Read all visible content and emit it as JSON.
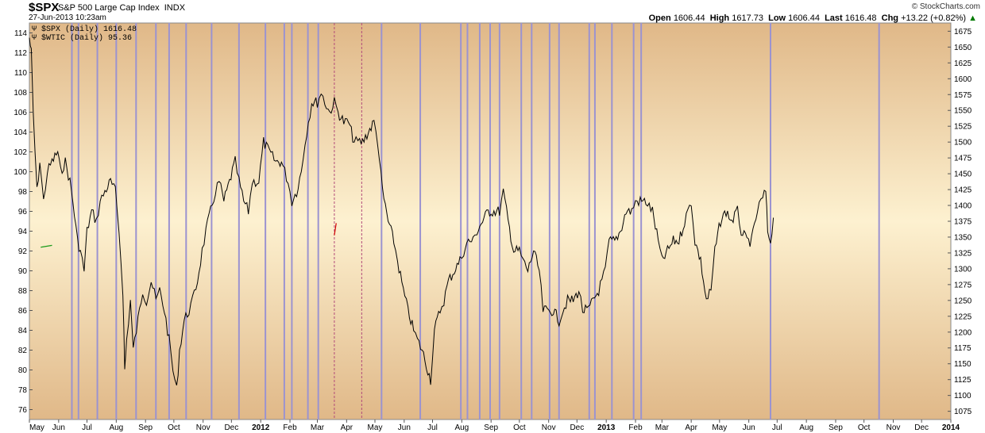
{
  "header": {
    "symbol": "$SPX",
    "name": "S&P 500 Large Cap Index",
    "exchange": "INDX",
    "date": "27-Jun-2013 10:23am",
    "brand": "© StockCharts.com",
    "open_label": "Open",
    "open": "1606.44",
    "high_label": "High",
    "high": "1617.73",
    "low_label": "Low",
    "low": "1606.44",
    "last_label": "Last",
    "last": "1616.48",
    "chg_label": "Chg",
    "chg": "+13.22 (+0.82%)"
  },
  "legend": [
    {
      "text": "$SPX (Daily) 1616.48"
    },
    {
      "text": "$WTIC (Daily) 95.36"
    }
  ],
  "colors": {
    "bg_light": "#fdf1d0",
    "bg_dark": "#e0b888",
    "vline": "#9b93d0",
    "vline_dash": "#b24a7a",
    "spx": "#000000",
    "wtic_up": "#1a9a1a",
    "wtic_down": "#d00000",
    "up_arrow": "#2a9a2a"
  },
  "chart_data": {
    "type": "line",
    "title": "$SPX S&P 500 Large Cap Index INDX",
    "x_ticks": [
      "May",
      "Jun",
      "Jul",
      "Aug",
      "Sep",
      "Oct",
      "Nov",
      "Dec",
      "2012",
      "Feb",
      "Mar",
      "Apr",
      "May",
      "Jun",
      "Jul",
      "Aug",
      "Sep",
      "Oct",
      "Nov",
      "Dec",
      "2013",
      "Feb",
      "Mar",
      "Apr",
      "May",
      "Jun",
      "Jul",
      "Aug",
      "Sep",
      "Oct",
      "Nov",
      "Dec",
      "2014"
    ],
    "x_range": [
      "2011-05",
      "2014-01"
    ],
    "left_axis": {
      "label": "$WTIC",
      "ticks": [
        76,
        78,
        80,
        82,
        84,
        86,
        88,
        90,
        92,
        94,
        96,
        98,
        100,
        102,
        104,
        106,
        108,
        110,
        112,
        114
      ],
      "range": [
        75,
        115
      ]
    },
    "right_axis": {
      "label": "$SPX",
      "ticks": [
        1075,
        1100,
        1125,
        1150,
        1175,
        1200,
        1225,
        1250,
        1275,
        1300,
        1325,
        1350,
        1375,
        1400,
        1425,
        1450,
        1475,
        1500,
        1525,
        1550,
        1575,
        1600,
        1625,
        1650,
        1675
      ],
      "range": [
        1062,
        1688
      ]
    },
    "vertical_markers": [
      "2011-06-15",
      "2011-06-22",
      "2011-07-12",
      "2011-08-01",
      "2011-08-22",
      "2011-09-12",
      "2011-09-26",
      "2011-10-14",
      "2011-11-10",
      "2011-12-09",
      "2012-01-06",
      "2012-01-26",
      "2012-02-03",
      "2012-02-20",
      "2012-03-02",
      "2012-03-19",
      "2012-04-17",
      "2012-05-08",
      "2012-06-18",
      "2012-07-31",
      "2012-08-07",
      "2012-08-20",
      "2012-08-31",
      "2012-09-10",
      "2012-10-03",
      "2012-10-14",
      "2012-11-02",
      "2012-11-12",
      "2012-12-14",
      "2012-12-20",
      "2013-01-07",
      "2013-01-30",
      "2013-02-07",
      "2013-06-24",
      "2013-10-17"
    ],
    "dashed_markers": [
      "2012-03-19",
      "2012-04-17"
    ],
    "series": [
      {
        "name": "$WTIC (Daily) 95.36",
        "axis": "left",
        "color": "#000000",
        "points": [
          [
            "2011-05-01",
            113.5
          ],
          [
            "2011-05-03",
            112
          ],
          [
            "2011-05-05",
            106
          ],
          [
            "2011-05-09",
            98
          ],
          [
            "2011-05-12",
            101
          ],
          [
            "2011-05-16",
            97
          ],
          [
            "2011-05-20",
            100
          ],
          [
            "2011-05-25",
            101
          ],
          [
            "2011-05-31",
            102
          ],
          [
            "2011-06-03",
            100
          ],
          [
            "2011-06-08",
            101
          ],
          [
            "2011-06-13",
            99
          ],
          [
            "2011-06-16",
            97
          ],
          [
            "2011-06-21",
            93
          ],
          [
            "2011-06-24",
            92
          ],
          [
            "2011-06-28",
            90
          ],
          [
            "2011-07-01",
            94
          ],
          [
            "2011-07-06",
            96
          ],
          [
            "2011-07-11",
            95
          ],
          [
            "2011-07-15",
            97
          ],
          [
            "2011-07-20",
            98
          ],
          [
            "2011-07-26",
            99
          ],
          [
            "2011-07-31",
            98
          ],
          [
            "2011-08-04",
            94
          ],
          [
            "2011-08-08",
            88
          ],
          [
            "2011-08-10",
            80
          ],
          [
            "2011-08-12",
            83
          ],
          [
            "2011-08-16",
            87
          ],
          [
            "2011-08-19",
            82
          ],
          [
            "2011-08-24",
            85
          ],
          [
            "2011-08-29",
            88
          ],
          [
            "2011-09-02",
            87
          ],
          [
            "2011-09-07",
            89
          ],
          [
            "2011-09-12",
            87
          ],
          [
            "2011-09-16",
            88
          ],
          [
            "2011-09-21",
            86
          ],
          [
            "2011-09-26",
            83
          ],
          [
            "2011-09-30",
            80
          ],
          [
            "2011-10-04",
            78
          ],
          [
            "2011-10-07",
            82
          ],
          [
            "2011-10-12",
            85
          ],
          [
            "2011-10-17",
            86
          ],
          [
            "2011-10-21",
            87
          ],
          [
            "2011-10-26",
            89
          ],
          [
            "2011-10-31",
            92
          ],
          [
            "2011-11-04",
            94
          ],
          [
            "2011-11-09",
            96
          ],
          [
            "2011-11-14",
            98
          ],
          [
            "2011-11-18",
            99
          ],
          [
            "2011-11-23",
            97
          ],
          [
            "2011-11-29",
            99
          ],
          [
            "2011-12-05",
            101
          ],
          [
            "2011-12-09",
            99
          ],
          [
            "2011-12-14",
            97
          ],
          [
            "2011-12-19",
            96
          ],
          [
            "2011-12-23",
            99
          ],
          [
            "2011-12-30",
            99
          ],
          [
            "2012-01-04",
            103
          ],
          [
            "2012-01-10",
            102
          ],
          [
            "2012-01-17",
            101
          ],
          [
            "2012-01-23",
            101
          ],
          [
            "2012-01-30",
            99
          ],
          [
            "2012-02-03",
            97
          ],
          [
            "2012-02-08",
            98
          ],
          [
            "2012-02-13",
            100
          ],
          [
            "2012-02-17",
            103
          ],
          [
            "2012-02-24",
            107
          ],
          [
            "2012-03-01",
            107
          ],
          [
            "2012-03-05",
            108
          ],
          [
            "2012-03-09",
            107
          ],
          [
            "2012-03-14",
            106
          ],
          [
            "2012-03-19",
            107
          ],
          [
            "2012-03-23",
            106
          ],
          [
            "2012-03-29",
            105
          ],
          [
            "2012-04-03",
            105
          ],
          [
            "2012-04-09",
            103
          ],
          [
            "2012-04-13",
            103
          ],
          [
            "2012-04-18",
            103
          ],
          [
            "2012-04-24",
            104
          ],
          [
            "2012-04-30",
            105
          ],
          [
            "2012-05-04",
            103
          ],
          [
            "2012-05-09",
            98
          ],
          [
            "2012-05-15",
            95
          ],
          [
            "2012-05-21",
            93
          ],
          [
            "2012-05-25",
            91
          ],
          [
            "2012-05-31",
            88
          ],
          [
            "2012-06-05",
            86
          ],
          [
            "2012-06-11",
            84
          ],
          [
            "2012-06-15",
            83
          ],
          [
            "2012-06-20",
            82
          ],
          [
            "2012-06-26",
            80
          ],
          [
            "2012-06-29",
            79
          ],
          [
            "2012-07-03",
            84
          ],
          [
            "2012-07-09",
            86
          ],
          [
            "2012-07-13",
            87
          ],
          [
            "2012-07-18",
            89
          ],
          [
            "2012-07-24",
            90
          ],
          [
            "2012-07-30",
            91
          ],
          [
            "2012-08-03",
            92
          ],
          [
            "2012-08-08",
            93
          ],
          [
            "2012-08-13",
            93
          ],
          [
            "2012-08-17",
            94
          ],
          [
            "2012-08-23",
            95
          ],
          [
            "2012-08-29",
            96
          ],
          [
            "2012-09-04",
            96
          ],
          [
            "2012-09-10",
            96
          ],
          [
            "2012-09-14",
            98
          ],
          [
            "2012-09-19",
            95
          ],
          [
            "2012-09-25",
            92
          ],
          [
            "2012-10-01",
            92
          ],
          [
            "2012-10-05",
            91
          ],
          [
            "2012-10-10",
            90
          ],
          [
            "2012-10-16",
            92
          ],
          [
            "2012-10-22",
            90
          ],
          [
            "2012-10-26",
            86
          ],
          [
            "2012-11-01",
            86
          ],
          [
            "2012-11-06",
            86
          ],
          [
            "2012-11-12",
            85
          ],
          [
            "2012-11-16",
            86
          ],
          [
            "2012-11-21",
            87
          ],
          [
            "2012-11-27",
            87
          ],
          [
            "2012-12-03",
            88
          ],
          [
            "2012-12-07",
            86
          ],
          [
            "2012-12-13",
            86
          ],
          [
            "2012-12-18",
            87
          ],
          [
            "2012-12-24",
            88
          ],
          [
            "2012-12-31",
            90
          ],
          [
            "2013-01-04",
            93
          ],
          [
            "2013-01-10",
            93
          ],
          [
            "2013-01-16",
            94
          ],
          [
            "2013-01-22",
            96
          ],
          [
            "2013-01-28",
            96
          ],
          [
            "2013-02-01",
            97
          ],
          [
            "2013-02-06",
            97
          ],
          [
            "2013-02-12",
            97
          ],
          [
            "2013-02-19",
            96
          ],
          [
            "2013-02-25",
            93
          ],
          [
            "2013-03-01",
            91
          ],
          [
            "2013-03-07",
            92
          ],
          [
            "2013-03-13",
            93
          ],
          [
            "2013-03-19",
            93
          ],
          [
            "2013-03-25",
            95
          ],
          [
            "2013-04-01",
            97
          ],
          [
            "2013-04-05",
            93
          ],
          [
            "2013-04-11",
            91
          ],
          [
            "2013-04-17",
            87
          ],
          [
            "2013-04-22",
            88
          ],
          [
            "2013-04-26",
            92
          ],
          [
            "2013-05-02",
            95
          ],
          [
            "2013-05-08",
            96
          ],
          [
            "2013-05-14",
            95
          ],
          [
            "2013-05-20",
            96
          ],
          [
            "2013-05-24",
            94
          ],
          [
            "2013-05-30",
            93
          ],
          [
            "2013-06-04",
            93
          ],
          [
            "2013-06-10",
            96
          ],
          [
            "2013-06-14",
            97
          ],
          [
            "2013-06-19",
            98
          ],
          [
            "2013-06-21",
            94
          ],
          [
            "2013-06-24",
            93
          ],
          [
            "2013-06-27",
            95.36
          ]
        ]
      },
      {
        "name": "$SPX (Daily) 1616.48",
        "axis": "right",
        "color": "#1a9a1a",
        "points": [
          [
            "2011-05-13",
            1334
          ],
          [
            "2011-05-25",
            1337
          ]
        ]
      },
      {
        "name": "$SPX (Daily) 1616.48",
        "axis": "right",
        "color": "#d00000",
        "points": [
          [
            "2012-03-19",
            1353
          ],
          [
            "2012-03-21",
            1372
          ]
        ]
      }
    ]
  }
}
